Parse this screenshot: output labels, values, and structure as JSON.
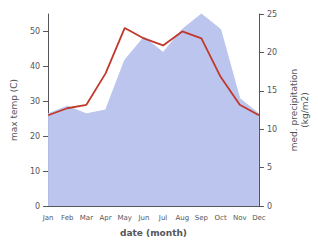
{
  "chart_data": {
    "type": "line",
    "categories": [
      "Jan",
      "Feb",
      "Mar",
      "Apr",
      "May",
      "Jun",
      "Jul",
      "Aug",
      "Sep",
      "Oct",
      "Nov",
      "Dec"
    ],
    "series": [
      {
        "type": "area",
        "color": "#bcc5ee",
        "values": [
          12,
          13,
          12,
          12.5,
          19,
          22,
          20,
          23,
          25,
          23,
          14,
          12
        ],
        "axis": "y2"
      },
      {
        "type": "line",
        "color": "#c0392b",
        "values": [
          26,
          28,
          29,
          38,
          51,
          48,
          46,
          50,
          48,
          37,
          29,
          26
        ]
      }
    ],
    "xlabel": "date (month)",
    "ylabel": "max temp (C)",
    "y2label": "med. precipitation\n(kg/m2)",
    "ylim": [
      0,
      55
    ],
    "yticks": [
      0,
      10,
      20,
      30,
      40,
      50
    ],
    "y2lim": [
      0,
      25
    ],
    "y2ticks": [
      0,
      5,
      10,
      15,
      20,
      25
    ],
    "grid": false
  }
}
